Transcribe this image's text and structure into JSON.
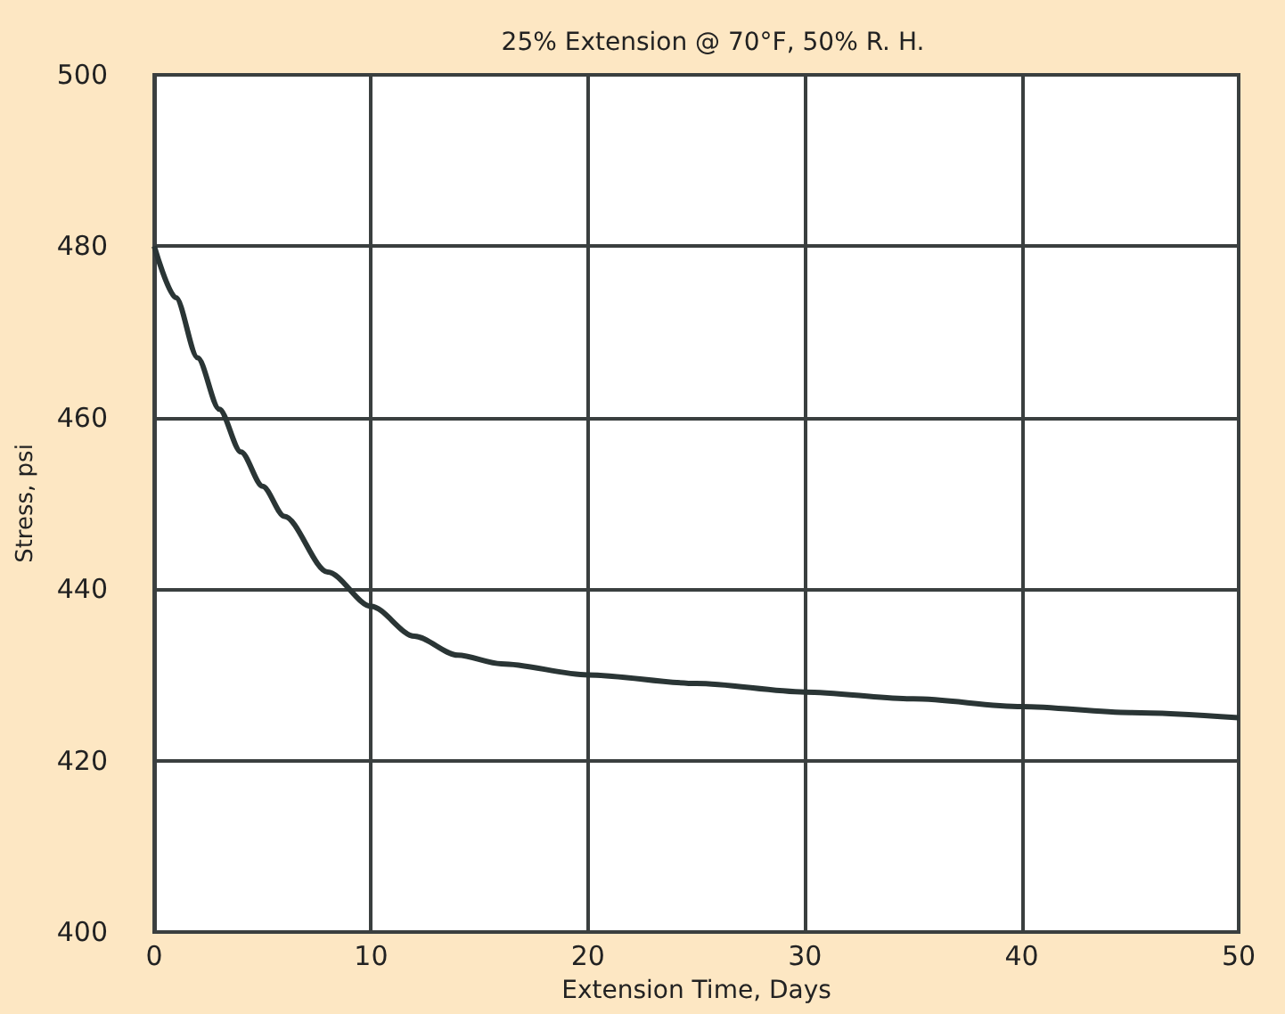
{
  "chart_data": {
    "type": "line",
    "title": "25% Extension @ 70°F, 50% R. H.",
    "xlabel": "Extension Time, Days",
    "ylabel": "Stress, psi",
    "x": [
      0,
      1,
      2,
      3,
      4,
      5,
      6,
      8,
      10,
      12,
      14,
      16,
      20,
      25,
      30,
      35,
      40,
      45,
      50
    ],
    "series": [
      {
        "color": "#2a3535",
        "values": [
          480,
          474,
          467,
          461,
          456,
          452,
          448.5,
          442,
          438,
          434.5,
          432.3,
          431.3,
          430,
          429,
          428,
          427.2,
          426.3,
          425.6,
          425
        ]
      }
    ],
    "xlim": [
      0,
      50
    ],
    "xticks": [
      0,
      10,
      20,
      30,
      40,
      50
    ],
    "ylim": [
      400,
      500
    ],
    "yticks": [
      400,
      420,
      440,
      460,
      480,
      500
    ],
    "grid": true,
    "marker": "none",
    "line_style": "solid"
  }
}
